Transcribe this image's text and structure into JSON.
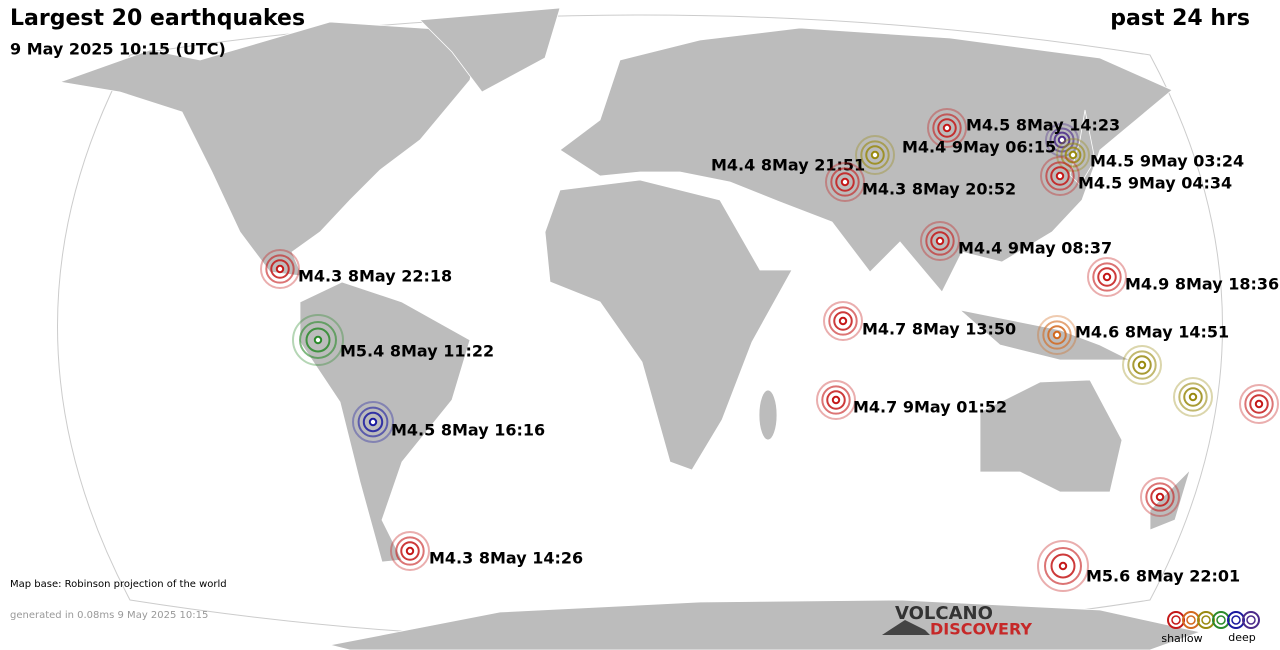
{
  "title": "Largest 20 earthquakes",
  "period": "past 24 hrs",
  "date": "9 May 2025 10:15 (UTC)",
  "map_note": "Map base: Robinson projection of the world",
  "generated": "generated in 0.08ms  9 May 2025 10:15",
  "logo": {
    "top": "VOLCANO",
    "bottom": "DISCOVERY"
  },
  "legend": {
    "shallow": "shallow",
    "deep": "deep"
  },
  "quakes": [
    {
      "label": "M4.5  8May 14:23"
    },
    {
      "label": "M4.4  9May 06:15"
    },
    {
      "label": "M4.4  8May 21:51"
    },
    {
      "label": "M4.3  8May 20:52"
    },
    {
      "label": "M4.5  9May 03:24"
    },
    {
      "label": "M4.5  9May 04:34"
    },
    {
      "label": "M4.4  9May 08:37"
    },
    {
      "label": "M4.9  8May 18:36"
    },
    {
      "label": "M4.3  8May 22:18"
    },
    {
      "label": "M5.4  8May 11:22"
    },
    {
      "label": "M4.7  8May 13:50"
    },
    {
      "label": "M4.6  8May 14:51"
    },
    {
      "label": "M4.5  8May 16:16"
    },
    {
      "label": "M4.7  9May 01:52"
    },
    {
      "label": "M4.3  8May 14:26"
    },
    {
      "label": "M5.6  8May 22:01"
    }
  ]
}
